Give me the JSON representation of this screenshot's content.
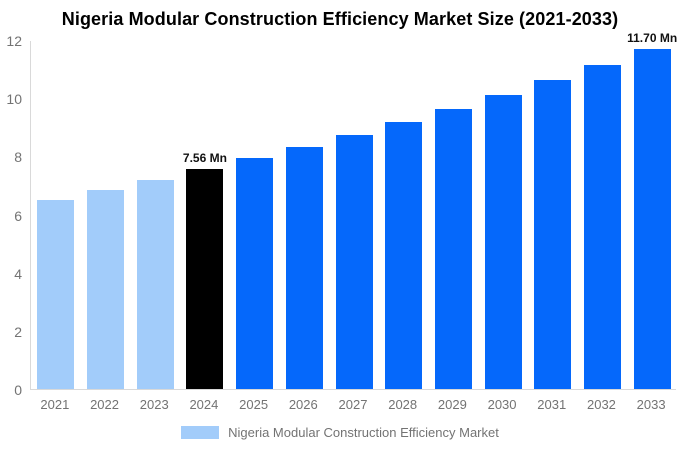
{
  "title": "Nigeria Modular Construction Efficiency Market Size (2021-2033)",
  "chart_data": {
    "type": "bar",
    "title": "Nigeria Modular Construction Efficiency Market Size (2021-2033)",
    "categories": [
      "2021",
      "2022",
      "2023",
      "2024",
      "2025",
      "2026",
      "2027",
      "2028",
      "2029",
      "2030",
      "2031",
      "2032",
      "2033"
    ],
    "values": [
      6.5,
      6.83,
      7.19,
      7.56,
      7.94,
      8.33,
      8.74,
      9.17,
      9.62,
      10.1,
      10.61,
      11.14,
      11.7
    ],
    "unit": "Mn",
    "bar_colors": [
      "#A2CCFA",
      "#A2CCFA",
      "#A2CCFA",
      "#000000",
      "#0568FB",
      "#0568FB",
      "#0568FB",
      "#0568FB",
      "#0568FB",
      "#0568FB",
      "#0568FB",
      "#0568FB",
      "#0568FB"
    ],
    "value_labels": {
      "3": "7.56 Mn",
      "12": "11.70 Mn"
    },
    "xlabel": "",
    "ylabel": "",
    "ylim": [
      0,
      12
    ],
    "yticks": [
      0,
      2,
      4,
      6,
      8,
      10,
      12
    ],
    "grid": false,
    "legend": {
      "label": "Nigeria Modular Construction Efficiency Market",
      "swatch_color": "#A2CCFA",
      "position": "bottom"
    },
    "colors": {
      "historical_bar": "#A2CCFA",
      "highlight_bar": "#000000",
      "forecast_bar": "#0568FB",
      "axis_line": "#D9D9D9",
      "tick_text": "#737373",
      "title_text": "#000000",
      "value_label_text": "#111111"
    }
  }
}
